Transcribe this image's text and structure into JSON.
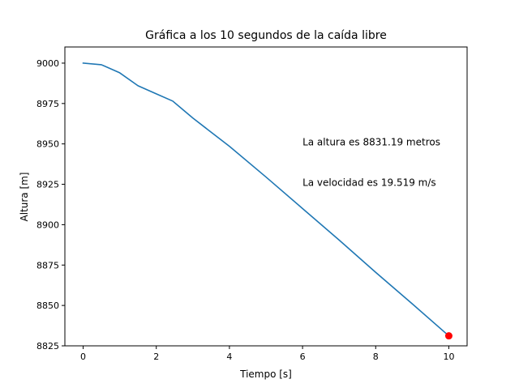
{
  "chart_data": {
    "type": "line",
    "title": "Gráfica a los 10 segundos de la caída libre",
    "xlabel": "Tiempo [s]",
    "ylabel": "Altura [m]",
    "xlim": [
      -0.5,
      10.5
    ],
    "ylim": [
      8825,
      9010
    ],
    "xticks": [
      0,
      2,
      4,
      6,
      8,
      10
    ],
    "yticks": [
      8825,
      8850,
      8875,
      8900,
      8925,
      8950,
      8975,
      9000
    ],
    "grid": false,
    "series": [
      {
        "color": "#1f77b4",
        "x": [
          0,
          0.5,
          1.0,
          1.5,
          2.0,
          2.45,
          3.0,
          3.4,
          4.0,
          5.0,
          6.0,
          7.0,
          8.0,
          9.0,
          10.0
        ],
        "y": [
          9000,
          8999,
          8994,
          8986,
          8981,
          8976.5,
          8966,
          8959,
          8948.5,
          8929.5,
          8910,
          8890.5,
          8870.5,
          8851,
          8831.19
        ]
      }
    ],
    "marker": {
      "x": 10,
      "y": 8831.19,
      "color": "#ff0000"
    },
    "annotations": [
      {
        "text": "La altura es 8831.19 metros",
        "x": 6.0,
        "y": 8951
      },
      {
        "text": "La velocidad es 19.519 m/s",
        "x": 6.0,
        "y": 8926
      }
    ]
  }
}
